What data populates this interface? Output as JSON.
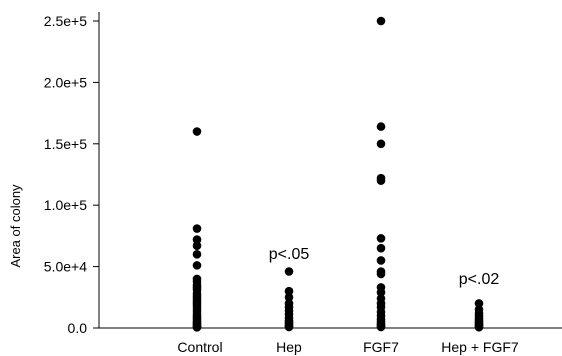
{
  "chart_data": {
    "type": "scatter",
    "title": "",
    "xlabel": "",
    "ylabel": "Area of colony",
    "ylim": [
      0,
      250000
    ],
    "grid": false,
    "categories": [
      "Control",
      "Hep",
      "FGF7",
      "Hep + FGF7"
    ],
    "yticks": [
      0,
      50000,
      100000,
      150000,
      200000,
      250000
    ],
    "ytick_labels": [
      "0.0",
      "5.0e+4",
      "1.0e+5",
      "1.5e+5",
      "2.0e+5",
      "2.5e+5"
    ],
    "series": [
      {
        "category": "Control",
        "values": [
          160000,
          81000,
          72000,
          67000,
          60000,
          51000,
          40000,
          38000,
          35000,
          33000,
          31000,
          28000,
          26000,
          24000,
          22000,
          20000,
          18000,
          16000,
          14000,
          12000,
          10000,
          8500,
          7000,
          5500,
          4500,
          3500,
          2500,
          1800,
          1000,
          500
        ]
      },
      {
        "category": "Hep",
        "values": [
          46000,
          30000,
          25000,
          20000,
          17000,
          14000,
          11000,
          8000,
          6000,
          4500,
          3500,
          2500,
          1500,
          800
        ]
      },
      {
        "category": "FGF7",
        "values": [
          250000,
          164000,
          150000,
          122000,
          120000,
          73000,
          65000,
          55000,
          46000,
          44000,
          33000,
          29000,
          24000,
          20000,
          17000,
          13000,
          10000,
          7000,
          5000,
          3500,
          2500,
          1500,
          800
        ]
      },
      {
        "category": "Hep + FGF7",
        "values": [
          20000,
          15000,
          12000,
          10000,
          8000,
          6500,
          5000,
          4000,
          3000,
          2000,
          1300,
          600
        ]
      }
    ],
    "annotations": [
      {
        "text": "p<.05",
        "category": "Hep",
        "y": 56000
      },
      {
        "text": "p<.02",
        "category": "Hep + FGF7",
        "y": 36000
      }
    ]
  }
}
